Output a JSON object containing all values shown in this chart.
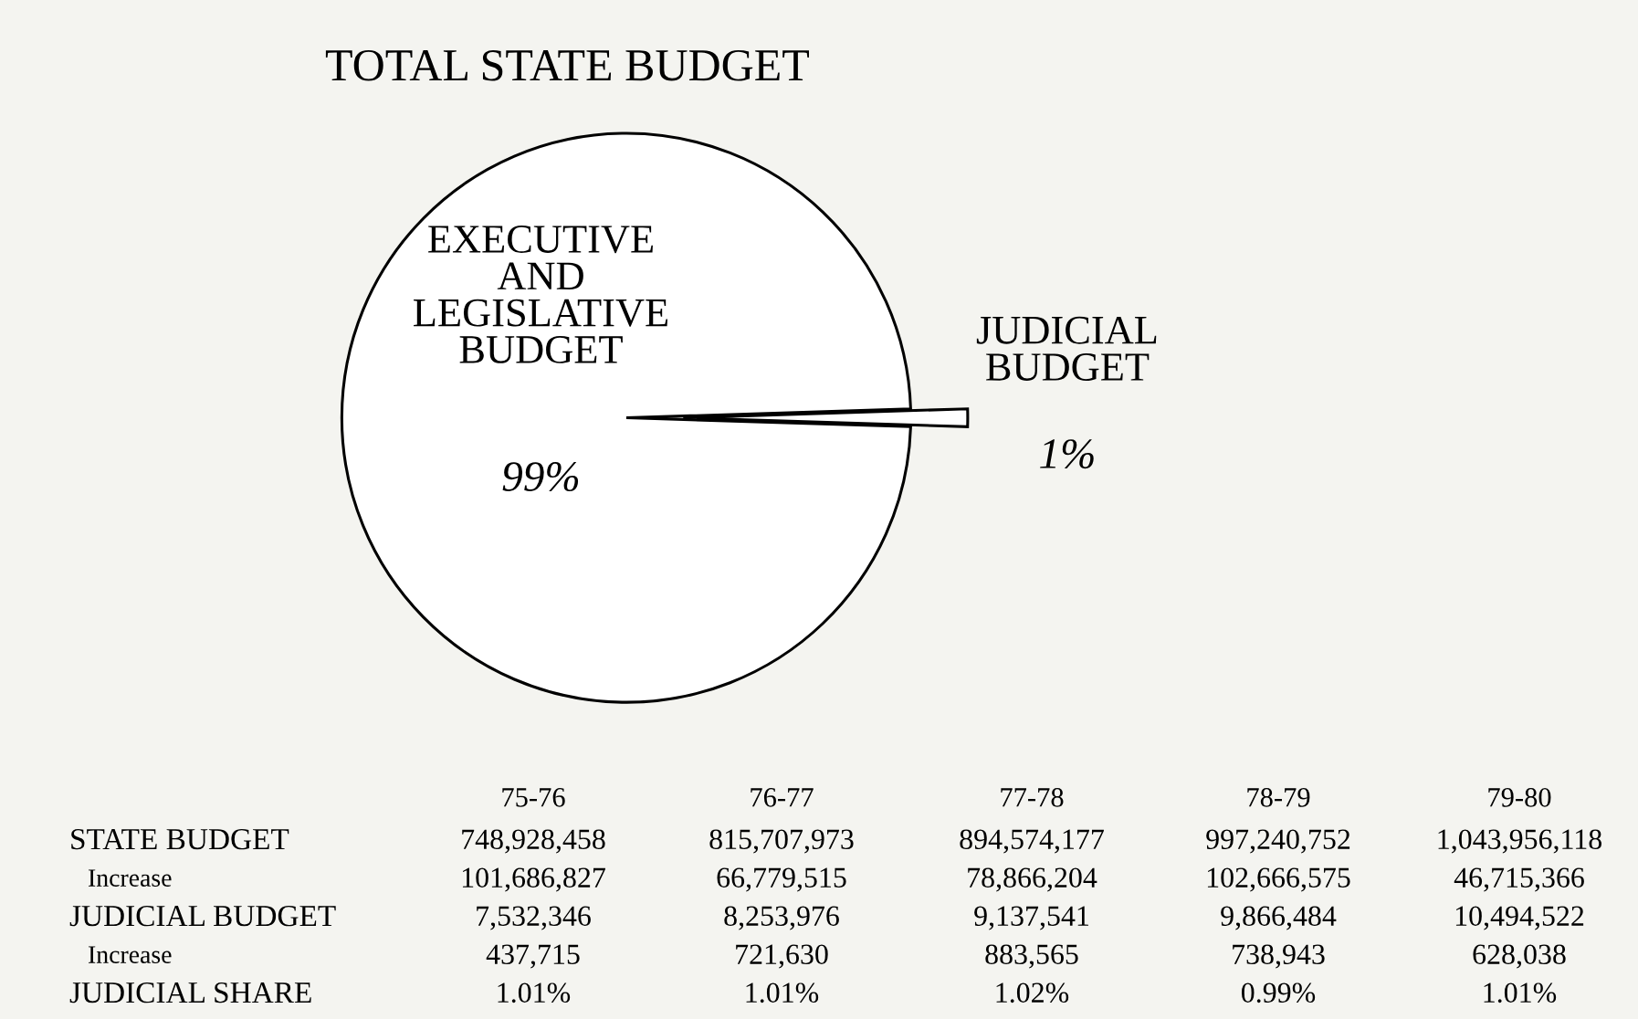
{
  "chart_data": [
    {
      "type": "pie",
      "title": "TOTAL STATE BUDGET",
      "categories": [
        "EXECUTIVE\nAND\nLEGISLATIVE\nBUDGET",
        "JUDICIAL\nBUDGET"
      ],
      "values": [
        99,
        1
      ],
      "colors": [
        "#ffffff",
        "#ffffff"
      ],
      "value_labels": [
        "99%",
        "1%"
      ]
    },
    {
      "type": "other",
      "annotations": [
        "75-76",
        "76-77",
        "77-78",
        "78-79",
        "79-80",
        "STATE BUDGET",
        "748,928,458",
        "815,707,973",
        "894,574,177",
        "997,240,752",
        "1,043,956,118",
        "Increase",
        "101,686,827",
        "66,779,515",
        "78,866,204",
        "102,666,575",
        "46,715,366",
        "JUDICIAL BUDGET",
        "7,532,346",
        "8,253,976",
        "9,137,541",
        "9,866,484",
        "10,494,522",
        "Increase",
        "437,715",
        "721,630",
        "883,565",
        "738,943",
        "628,038",
        "JUDICIAL SHARE",
        "1.01%",
        "1.01%",
        "1.02%",
        "0.99%",
        "1.01%"
      ]
    }
  ]
}
